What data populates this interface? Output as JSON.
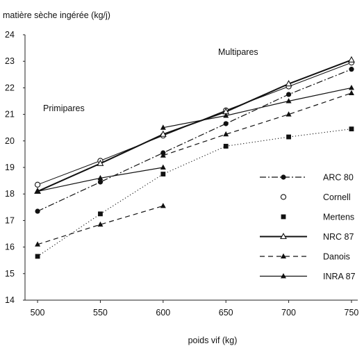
{
  "chart_data": {
    "type": "line",
    "title": "",
    "ylabel": "matière sèche ingérée (kg/j)",
    "xlabel": "poids vif (kg)",
    "xlim": [
      490,
      755
    ],
    "ylim": [
      14,
      24
    ],
    "x_ticks": [
      500,
      550,
      600,
      650,
      700,
      750
    ],
    "y_ticks": [
      14,
      15,
      16,
      17,
      18,
      19,
      20,
      21,
      22,
      23,
      24
    ],
    "grid": false,
    "legend_position": "bottom-right",
    "annotations": [
      "Primipares",
      "Multipares"
    ],
    "series": [
      {
        "name": "ARC 80",
        "style": "dashdot",
        "marker": "filled-circle",
        "color": "#111111",
        "points": [
          [
            500,
            17.35
          ],
          [
            550,
            18.45
          ],
          [
            600,
            19.55
          ],
          [
            650,
            20.65
          ],
          [
            700,
            21.75
          ],
          [
            750,
            22.7
          ]
        ]
      },
      {
        "name": "Cornell",
        "style": "solid-thin",
        "marker": "open-circle",
        "color": "#111111",
        "points": [
          [
            500,
            18.35
          ],
          [
            550,
            19.25
          ],
          [
            600,
            20.2
          ],
          [
            650,
            21.15
          ],
          [
            700,
            22.05
          ],
          [
            750,
            22.95
          ]
        ]
      },
      {
        "name": "Mertens",
        "style": "dotted",
        "marker": "filled-square",
        "color": "#111111",
        "points": [
          [
            500,
            15.65
          ],
          [
            550,
            17.25
          ],
          [
            600,
            18.75
          ],
          [
            650,
            19.8
          ],
          [
            700,
            20.15
          ],
          [
            750,
            20.45
          ]
        ]
      },
      {
        "name": "NRC 87",
        "style": "solid-thick",
        "marker": "open-triangle",
        "color": "#111111",
        "points": [
          [
            500,
            18.1
          ],
          [
            550,
            19.15
          ],
          [
            600,
            20.25
          ],
          [
            650,
            21.1
          ],
          [
            700,
            22.15
          ],
          [
            750,
            23.05
          ]
        ]
      },
      {
        "name": "Danois",
        "style": "dashed",
        "marker": "filled-triangle",
        "color": "#111111",
        "segments": [
          [
            [
              500,
              16.1
            ],
            [
              550,
              16.85
            ],
            [
              600,
              17.55
            ]
          ],
          [
            [
              600,
              19.45
            ],
            [
              650,
              20.25
            ],
            [
              700,
              21.0
            ],
            [
              750,
              21.8
            ]
          ]
        ]
      },
      {
        "name": "INRA 87",
        "style": "solid",
        "marker": "filled-triangle",
        "color": "#111111",
        "segments": [
          [
            [
              500,
              18.1
            ],
            [
              550,
              18.6
            ],
            [
              600,
              19.0
            ]
          ],
          [
            [
              600,
              20.5
            ],
            [
              650,
              20.95
            ],
            [
              700,
              21.5
            ],
            [
              750,
              22.0
            ]
          ]
        ]
      }
    ]
  }
}
